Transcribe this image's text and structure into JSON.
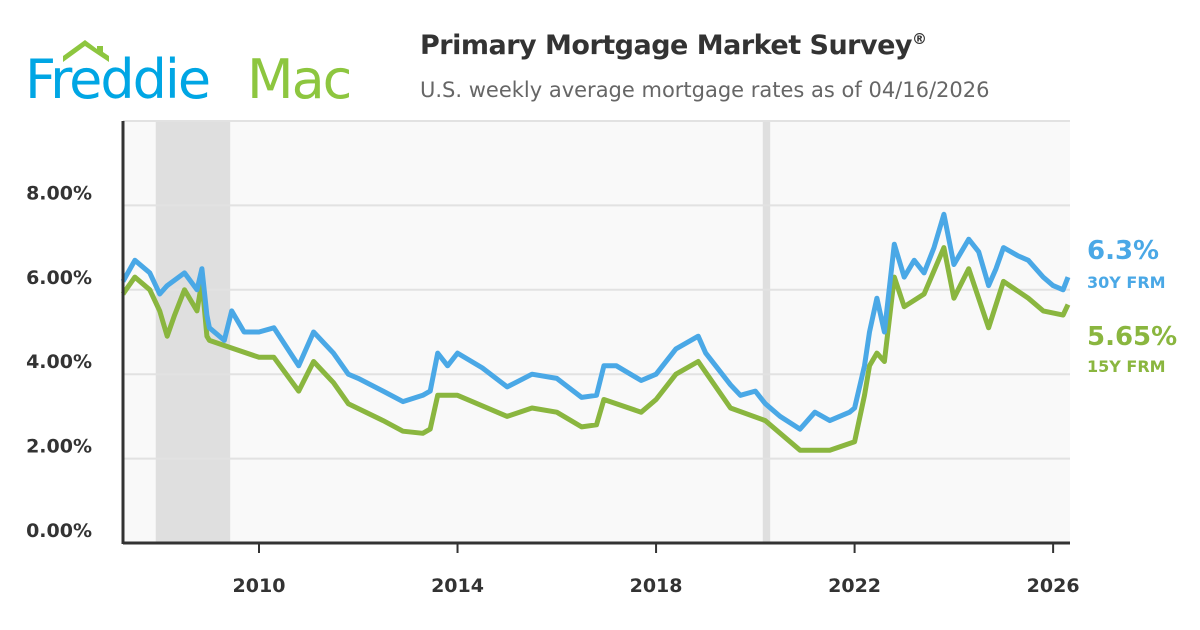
{
  "brand": {
    "name": "Freddie Mac",
    "part1": "Freddie",
    "part2": "Mac",
    "blue": "#00a6e4",
    "green": "#8dc63f"
  },
  "header": {
    "title": "Primary Mortgage Market Survey",
    "title_mark": "®",
    "subtitle": "U.S. weekly average mortgage rates as of 04/16/2026"
  },
  "chart_data": {
    "type": "line",
    "title": "Primary Mortgage Market Survey®",
    "subtitle": "U.S. weekly average mortgage rates as of 04/16/2026",
    "xlim": [
      2007.26,
      2026.34
    ],
    "ylim": [
      0,
      10
    ],
    "yticks": [
      0,
      2,
      4,
      6,
      8
    ],
    "ytick_labels": [
      "0.00%",
      "2.00%",
      "4.00%",
      "6.00%",
      "8.00%"
    ],
    "xticks": [
      2010,
      2014,
      2018,
      2022,
      2026
    ],
    "xtick_labels": [
      "2010",
      "2014",
      "2018",
      "2022",
      "2026"
    ],
    "grid": true,
    "recession_shading": [
      [
        2007.92,
        2009.42
      ],
      [
        2020.15,
        2020.3
      ]
    ],
    "series": [
      {
        "name": "30Y FRM",
        "end_label": "6.3%",
        "color": "#4aa8e6",
        "x": [
          2007.26,
          2007.5,
          2007.8,
          2008.0,
          2008.15,
          2008.5,
          2008.75,
          2008.85,
          2008.95,
          2009.0,
          2009.3,
          2009.45,
          2009.7,
          2010.0,
          2010.3,
          2010.8,
          2011.1,
          2011.5,
          2011.8,
          2012.0,
          2012.5,
          2012.9,
          2013.3,
          2013.45,
          2013.6,
          2013.8,
          2014.0,
          2014.5,
          2015.0,
          2015.5,
          2016.0,
          2016.5,
          2016.8,
          2016.95,
          2017.2,
          2017.7,
          2018.0,
          2018.4,
          2018.85,
          2019.0,
          2019.5,
          2019.7,
          2020.0,
          2020.2,
          2020.5,
          2020.9,
          2021.2,
          2021.5,
          2021.9,
          2022.0,
          2022.2,
          2022.3,
          2022.45,
          2022.6,
          2022.8,
          2023.0,
          2023.2,
          2023.4,
          2023.6,
          2023.8,
          2024.0,
          2024.3,
          2024.5,
          2024.7,
          2024.85,
          2025.0,
          2025.3,
          2025.5,
          2025.8,
          2026.0,
          2026.2,
          2026.3
        ],
        "y": [
          6.2,
          6.7,
          6.4,
          5.9,
          6.1,
          6.4,
          6.0,
          6.5,
          5.4,
          5.1,
          4.8,
          5.5,
          5.0,
          5.0,
          5.1,
          4.2,
          5.0,
          4.5,
          4.0,
          3.9,
          3.6,
          3.35,
          3.5,
          3.6,
          4.5,
          4.2,
          4.5,
          4.15,
          3.7,
          4.0,
          3.9,
          3.45,
          3.5,
          4.2,
          4.2,
          3.85,
          4.0,
          4.6,
          4.9,
          4.5,
          3.75,
          3.5,
          3.6,
          3.3,
          3.0,
          2.7,
          3.1,
          2.9,
          3.1,
          3.2,
          4.2,
          5.0,
          5.8,
          5.0,
          7.08,
          6.3,
          6.7,
          6.4,
          7.0,
          7.79,
          6.6,
          7.2,
          6.9,
          6.1,
          6.5,
          7.0,
          6.8,
          6.7,
          6.3,
          6.1,
          6.0,
          6.3
        ]
      },
      {
        "name": "15Y FRM",
        "end_label": "5.65%",
        "color": "#8ab63f",
        "x": [
          2007.26,
          2007.5,
          2007.8,
          2008.0,
          2008.15,
          2008.3,
          2008.5,
          2008.75,
          2008.85,
          2008.95,
          2009.0,
          2009.5,
          2010.0,
          2010.3,
          2010.8,
          2011.1,
          2011.5,
          2011.8,
          2012.5,
          2012.9,
          2013.3,
          2013.45,
          2013.6,
          2014.0,
          2015.0,
          2015.5,
          2016.0,
          2016.5,
          2016.8,
          2016.95,
          2017.7,
          2018.0,
          2018.4,
          2018.85,
          2019.5,
          2020.2,
          2020.9,
          2021.5,
          2022.0,
          2022.2,
          2022.3,
          2022.45,
          2022.6,
          2022.8,
          2023.0,
          2023.4,
          2023.8,
          2024.0,
          2024.3,
          2024.7,
          2025.0,
          2025.5,
          2025.8,
          2026.2,
          2026.3
        ],
        "y": [
          5.9,
          6.3,
          6.0,
          5.5,
          4.9,
          5.4,
          6.0,
          5.5,
          6.2,
          4.9,
          4.8,
          4.6,
          4.4,
          4.4,
          3.6,
          4.3,
          3.8,
          3.3,
          2.9,
          2.65,
          2.6,
          2.7,
          3.5,
          3.5,
          3.0,
          3.2,
          3.1,
          2.75,
          2.8,
          3.4,
          3.1,
          3.4,
          4.0,
          4.3,
          3.2,
          2.9,
          2.2,
          2.2,
          2.4,
          3.5,
          4.2,
          4.5,
          4.3,
          6.3,
          5.6,
          5.9,
          7.0,
          5.8,
          6.5,
          5.1,
          6.2,
          5.8,
          5.5,
          5.4,
          5.65
        ]
      }
    ]
  }
}
